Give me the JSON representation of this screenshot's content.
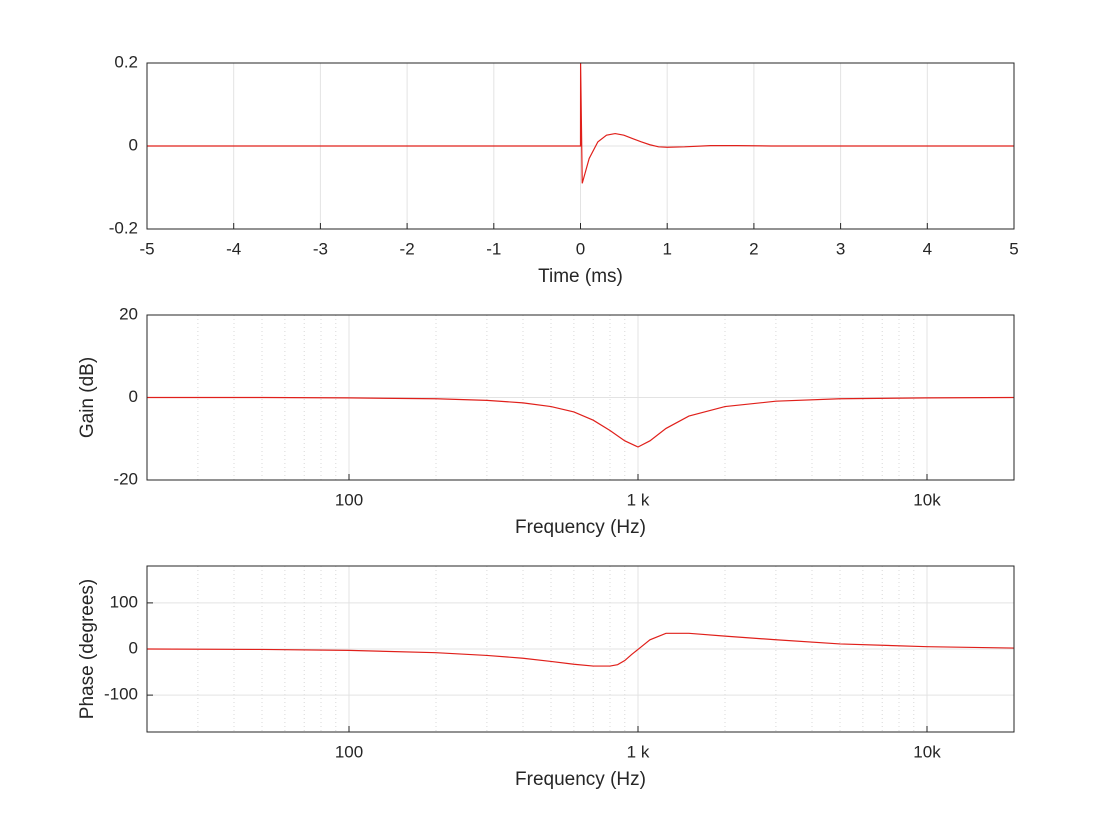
{
  "chart_data": [
    {
      "type": "line",
      "xlabel": "Time (ms)",
      "xlim": [
        -5,
        5
      ],
      "xticks": [
        -5,
        -4,
        -3,
        -2,
        -1,
        0,
        1,
        2,
        3,
        4,
        5
      ],
      "ylim": [
        -0.2,
        0.2
      ],
      "yticks": [
        -0.2,
        0,
        0.2
      ],
      "grid": true,
      "x": [
        -5,
        0,
        0.001,
        0.02,
        0.1,
        0.2,
        0.3,
        0.4,
        0.5,
        0.6,
        0.7,
        0.8,
        0.9,
        1.0,
        1.2,
        1.5,
        1.8,
        2.2,
        3,
        4,
        5
      ],
      "series": [
        {
          "color": "#e0201b",
          "values": [
            0,
            0,
            0.2,
            -0.09,
            -0.03,
            0.01,
            0.026,
            0.03,
            0.026,
            0.018,
            0.01,
            0.003,
            -0.002,
            -0.003,
            -0.002,
            0.001,
            0.001,
            0,
            0,
            0,
            0
          ]
        }
      ]
    },
    {
      "type": "line",
      "xlabel": "Frequency (Hz)",
      "ylabel": "Gain (dB)",
      "xscale": "log",
      "xlim": [
        20,
        20000
      ],
      "xticks": [
        100,
        {
          "value": 1000,
          "label": "1 k"
        },
        {
          "value": 10000,
          "label": "10k"
        }
      ],
      "ylim": [
        -20,
        20
      ],
      "yticks": [
        -20,
        0,
        20
      ],
      "grid": true,
      "minor_grid": true,
      "x": [
        20,
        50,
        100,
        200,
        300,
        400,
        500,
        600,
        700,
        800,
        900,
        1000,
        1100,
        1250,
        1500,
        2000,
        3000,
        5000,
        10000,
        20000
      ],
      "series": [
        {
          "color": "#e0201b",
          "values": [
            0,
            0,
            -0.1,
            -0.3,
            -0.7,
            -1.3,
            -2.2,
            -3.5,
            -5.5,
            -8,
            -10.5,
            -12,
            -10.5,
            -7.5,
            -4.5,
            -2.2,
            -0.9,
            -0.3,
            -0.1,
            0
          ]
        }
      ]
    },
    {
      "type": "line",
      "xlabel": "Frequency (Hz)",
      "ylabel": "Phase (degrees)",
      "xscale": "log",
      "xlim": [
        20,
        20000
      ],
      "xticks": [
        100,
        {
          "value": 1000,
          "label": "1 k"
        },
        {
          "value": 10000,
          "label": "10k"
        }
      ],
      "ylim": [
        -180,
        180
      ],
      "yticks": [
        -100,
        0,
        100
      ],
      "grid": true,
      "minor_grid": true,
      "x": [
        20,
        50,
        100,
        200,
        300,
        400,
        500,
        600,
        700,
        800,
        850,
        900,
        950,
        1000,
        1100,
        1250,
        1500,
        2000,
        3000,
        5000,
        10000,
        20000
      ],
      "series": [
        {
          "color": "#e0201b",
          "values": [
            0,
            -1,
            -3,
            -8,
            -14,
            -20,
            -27,
            -33,
            -37,
            -37,
            -34,
            -25,
            -12,
            -1,
            20,
            34,
            34,
            28,
            20,
            11,
            5,
            2
          ]
        }
      ]
    }
  ]
}
